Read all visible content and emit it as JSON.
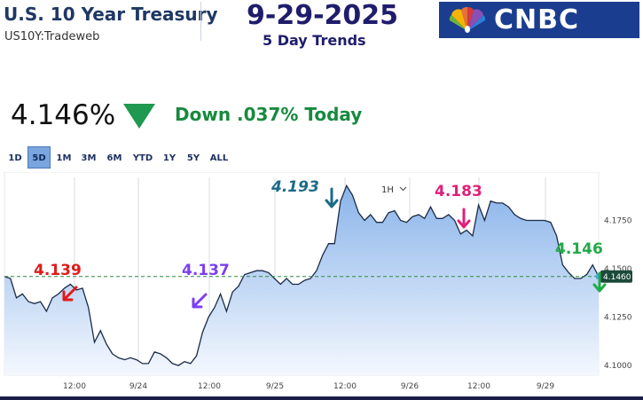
{
  "header": {
    "title": "U.S. 10 Year Treasury",
    "ticker": "US10Y:Tradeweb",
    "date": "9-29-2025",
    "subtitle": "5 Day Trends",
    "logo_text": "CNBC"
  },
  "quote": {
    "price": "4.146%",
    "change": "Down .037% Today",
    "direction": "down"
  },
  "ranges": {
    "items": [
      "1D",
      "5D",
      "1M",
      "3M",
      "6M",
      "YTD",
      "1Y",
      "5Y",
      "ALL"
    ],
    "selected": "5D"
  },
  "interval": {
    "label": "1H"
  },
  "colors": {
    "title": "#1f3864",
    "date": "#1f1d6b",
    "logo_bg": "#1a3d8f",
    "down": "#188a3e",
    "line": "#1b2b47",
    "fill_top": "#8ab4ea",
    "fill_bottom": "#f4f8fe",
    "current_badge": "#1b4a3a"
  },
  "chart_data": {
    "type": "area",
    "ylim": [
      4.095,
      4.2
    ],
    "yticks": [
      "4.1000",
      "4.1250",
      "4.1500",
      "4.1750"
    ],
    "xticks": [
      "12:00",
      "9/24",
      "12:00",
      "9/25",
      "12:00",
      "9/26",
      "12:00",
      "9/29"
    ],
    "current_value": "4.1460",
    "reference_line": 4.146,
    "series": [
      {
        "values": [
          4.146,
          4.145,
          4.135,
          4.137,
          4.133,
          4.132,
          4.133,
          4.128,
          4.135,
          4.137,
          4.14,
          4.142,
          4.139,
          4.14,
          4.13,
          4.112,
          4.118,
          4.111,
          4.106,
          4.104,
          4.103,
          4.104,
          4.103,
          4.101,
          4.101,
          4.107,
          4.106,
          4.104,
          4.101,
          4.1,
          4.102,
          4.101,
          4.105,
          4.117,
          4.125,
          4.13,
          4.137,
          4.128,
          4.138,
          4.141,
          4.147,
          4.148,
          4.149,
          4.149,
          4.148,
          4.145,
          4.142,
          4.145,
          4.142,
          4.142,
          4.144,
          4.145,
          4.149,
          4.157,
          4.163,
          4.163,
          4.185,
          4.193,
          4.188,
          4.179,
          4.175,
          4.178,
          4.174,
          4.174,
          4.179,
          4.18,
          4.175,
          4.174,
          4.177,
          4.178,
          4.176,
          4.182,
          4.176,
          4.176,
          4.178,
          4.175,
          4.168,
          4.17,
          4.167,
          4.183,
          4.175,
          4.185,
          4.184,
          4.184,
          4.182,
          4.178,
          4.176,
          4.175,
          4.175,
          4.175,
          4.175,
          4.174,
          4.167,
          4.152,
          4.148,
          4.145,
          4.145,
          4.147,
          4.152,
          4.146
        ]
      }
    ],
    "annotations": [
      {
        "label": "4.139",
        "color": "#e01b1b",
        "value": 4.139
      },
      {
        "label": "4.137",
        "color": "#7b3ff2",
        "value": 4.137
      },
      {
        "label": "4.193",
        "color": "#1c6a88",
        "value": 4.193
      },
      {
        "label": "4.183",
        "color": "#e0207a",
        "value": 4.183
      },
      {
        "label": "4.146",
        "color": "#22aa4a",
        "value": 4.146
      }
    ]
  }
}
